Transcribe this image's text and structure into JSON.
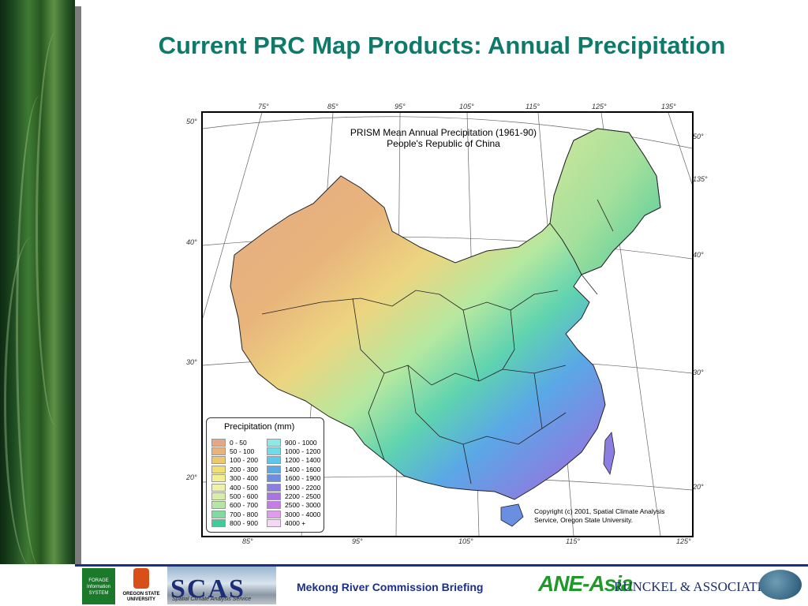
{
  "slide": {
    "title": "Current PRC Map Products: Annual Precipitation",
    "footer_text": "Mekong River Commission Briefing"
  },
  "map": {
    "title_line1": "PRISM  Mean Annual Precipitation (1961-90)",
    "title_line2": "People's Republic of China",
    "copyright_line1": "Copyright (c) 2001,  Spatial Climate Analysis",
    "copyright_line2": "Service, Oregon State University.",
    "top_longitudes": [
      "75°",
      "85°",
      "95°",
      "105°",
      "115°",
      "125°",
      "135°"
    ],
    "bottom_longitudes": [
      "85°",
      "95°",
      "105°",
      "115°",
      "125°"
    ],
    "left_latitudes": [
      "50°",
      "40°",
      "30°",
      "20°"
    ],
    "right_labels": [
      "50°",
      "135°",
      "40°",
      "30°",
      "20°"
    ],
    "legend": {
      "title": "Precipitation (mm)",
      "col1": [
        {
          "label": "0 - 50",
          "color": "#e3a886"
        },
        {
          "label": "50 - 100",
          "color": "#e8b47c"
        },
        {
          "label": "100 - 200",
          "color": "#edc86c"
        },
        {
          "label": "200 - 300",
          "color": "#f2df72"
        },
        {
          "label": "300 - 400",
          "color": "#f5ef8e"
        },
        {
          "label": "400 - 500",
          "color": "#eef3a6"
        },
        {
          "label": "500 - 600",
          "color": "#d6efa5"
        },
        {
          "label": "600 - 700",
          "color": "#b4e8a0"
        },
        {
          "label": "700 - 800",
          "color": "#7fdca0"
        },
        {
          "label": "800 - 900",
          "color": "#3fcc9a"
        }
      ],
      "col2": [
        {
          "label": "900 - 1000",
          "color": "#8ee8e8"
        },
        {
          "label": "1000 - 1200",
          "color": "#6fdcec"
        },
        {
          "label": "1200 - 1400",
          "color": "#5cc6ec"
        },
        {
          "label": "1400 - 1600",
          "color": "#5aa8e6"
        },
        {
          "label": "1600 - 1900",
          "color": "#6a8ee0"
        },
        {
          "label": "1900 - 2200",
          "color": "#8a7ee0"
        },
        {
          "label": "2200 - 2500",
          "color": "#a874e4"
        },
        {
          "label": "2500 - 3000",
          "color": "#c67ce8"
        },
        {
          "label": "3000 - 4000",
          "color": "#e29aee"
        },
        {
          "label": "4000 +",
          "color": "#f6d8f6"
        }
      ]
    }
  },
  "logos": {
    "fis": "FORAGE Information SYSTEM",
    "osu": "OREGON STATE UNIVERSITY",
    "scas_big": "SCAS",
    "scas_small": "Spatial Climate Analysis Service",
    "ane": "ANE-Asia",
    "runckel": "RUNCKEL & ASSOCIATES"
  }
}
